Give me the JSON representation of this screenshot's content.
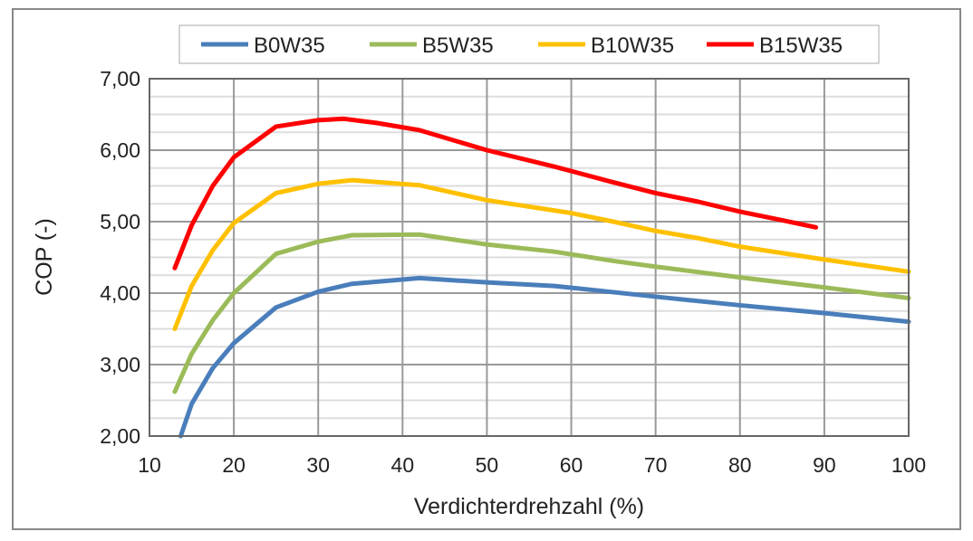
{
  "chart_data": {
    "type": "line",
    "title": "",
    "xlabel": "Verdichterdrehzahl (%)",
    "ylabel": "COP (-)",
    "xlim": [
      10,
      100
    ],
    "ylim": [
      2,
      7
    ],
    "xticks": [
      "10",
      "20",
      "30",
      "40",
      "50",
      "60",
      "70",
      "80",
      "90",
      "100"
    ],
    "yticks": [
      "2,00",
      "3,00",
      "4,00",
      "5,00",
      "6,00",
      "7,00"
    ],
    "grid": true,
    "legend_position": "top",
    "series": [
      {
        "name": "B0W35",
        "color": "#4a7ebb",
        "points": [
          [
            13.7,
            2.0
          ],
          [
            15,
            2.45
          ],
          [
            17.5,
            2.95
          ],
          [
            20,
            3.3
          ],
          [
            25,
            3.8
          ],
          [
            30,
            4.02
          ],
          [
            34,
            4.13
          ],
          [
            42,
            4.21
          ],
          [
            50,
            4.15
          ],
          [
            58,
            4.1
          ],
          [
            70,
            3.95
          ],
          [
            80,
            3.83
          ],
          [
            90,
            3.72
          ],
          [
            100,
            3.6
          ]
        ]
      },
      {
        "name": "B5W35",
        "color": "#9bbb59",
        "points": [
          [
            13,
            2.62
          ],
          [
            15,
            3.15
          ],
          [
            17.5,
            3.62
          ],
          [
            20,
            4.0
          ],
          [
            25,
            4.55
          ],
          [
            30,
            4.72
          ],
          [
            34,
            4.81
          ],
          [
            42,
            4.82
          ],
          [
            50,
            4.68
          ],
          [
            58,
            4.58
          ],
          [
            65,
            4.45
          ],
          [
            70,
            4.37
          ],
          [
            80,
            4.22
          ],
          [
            90,
            4.08
          ],
          [
            100,
            3.93
          ]
        ]
      },
      {
        "name": "B10W35",
        "color": "#ffc000",
        "points": [
          [
            13,
            3.5
          ],
          [
            15,
            4.1
          ],
          [
            17.5,
            4.6
          ],
          [
            20,
            4.98
          ],
          [
            25,
            5.4
          ],
          [
            30,
            5.53
          ],
          [
            34,
            5.58
          ],
          [
            42,
            5.51
          ],
          [
            50,
            5.3
          ],
          [
            60,
            5.12
          ],
          [
            65,
            5.0
          ],
          [
            70,
            4.87
          ],
          [
            75,
            4.77
          ],
          [
            80,
            4.65
          ],
          [
            90,
            4.47
          ],
          [
            100,
            4.3
          ]
        ]
      },
      {
        "name": "B15W35",
        "color": "#ff0000",
        "points": [
          [
            13,
            4.35
          ],
          [
            15,
            4.95
          ],
          [
            17.5,
            5.5
          ],
          [
            20,
            5.9
          ],
          [
            25,
            6.33
          ],
          [
            30,
            6.42
          ],
          [
            33,
            6.44
          ],
          [
            37,
            6.38
          ],
          [
            42,
            6.28
          ],
          [
            50,
            6.0
          ],
          [
            58,
            5.77
          ],
          [
            65,
            5.55
          ],
          [
            70,
            5.4
          ],
          [
            75,
            5.28
          ],
          [
            80,
            5.14
          ],
          [
            85,
            5.02
          ],
          [
            89,
            4.92
          ]
        ]
      }
    ]
  }
}
